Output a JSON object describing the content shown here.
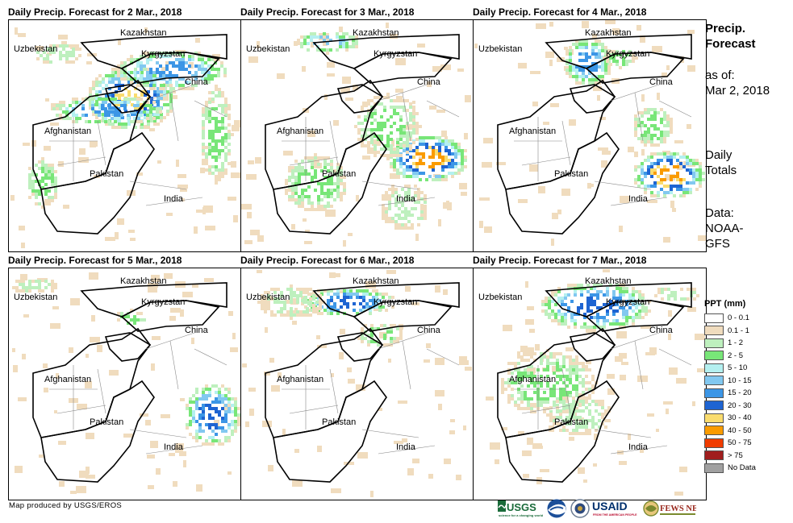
{
  "panels": [
    {
      "title": "Daily Precip. Forecast for 2 Mar., 2018"
    },
    {
      "title": "Daily Precip. Forecast for 3 Mar., 2018"
    },
    {
      "title": "Daily Precip. Forecast for 4 Mar., 2018"
    },
    {
      "title": "Daily Precip. Forecast for 5 Mar., 2018"
    },
    {
      "title": "Daily Precip. Forecast for 6 Mar., 2018"
    },
    {
      "title": "Daily Precip. Forecast for 7 Mar., 2018"
    }
  ],
  "map_labels": {
    "kazakhstan": "Kazakhstan",
    "uzbekistan": "Uzbekistan",
    "kyrgyzstan": "Kyrgyzstan",
    "china": "China",
    "afghanistan": "Afghanistan",
    "pakistan": "Pakistan",
    "india": "India"
  },
  "sidebar": {
    "title_line1": "Precip.",
    "title_line2": "Forecast",
    "asof_line1": "as of:",
    "asof_line2": "Mar 2, 2018",
    "totals_line1": "Daily",
    "totals_line2": "Totals",
    "data_line1": "Data:",
    "data_line2": "NOAA-",
    "data_line3": "GFS"
  },
  "legend": {
    "title": "PPT (mm)",
    "items": [
      {
        "label": "0 - 0.1",
        "color": "#ffffff"
      },
      {
        "label": "0.1 - 1",
        "color": "#f0dcbe"
      },
      {
        "label": "1 - 2",
        "color": "#bef0be"
      },
      {
        "label": "2 - 5",
        "color": "#78e678"
      },
      {
        "label": "5 - 10",
        "color": "#b4f0f0"
      },
      {
        "label": "10 - 15",
        "color": "#82c8f0"
      },
      {
        "label": "15 - 20",
        "color": "#3c96e6"
      },
      {
        "label": "20 - 30",
        "color": "#1e64d2"
      },
      {
        "label": "30 - 40",
        "color": "#fadc6e"
      },
      {
        "label": "40 - 50",
        "color": "#fa9b00"
      },
      {
        "label": "50 - 75",
        "color": "#f03c00"
      },
      {
        "label": "> 75",
        "color": "#a01e1e"
      },
      {
        "label": "No Data",
        "color": "#a0a0a0"
      }
    ]
  },
  "footer": {
    "credit": "Map produced by USGS/EROS"
  },
  "logos": {
    "usgs": "USGS",
    "usgs_tagline": "science for a changing world",
    "noaa": "NOAA",
    "usaid": "USAID",
    "usaid_tagline": "FROM THE AMERICAN PEOPLE",
    "fews": "FEWS NET"
  }
}
